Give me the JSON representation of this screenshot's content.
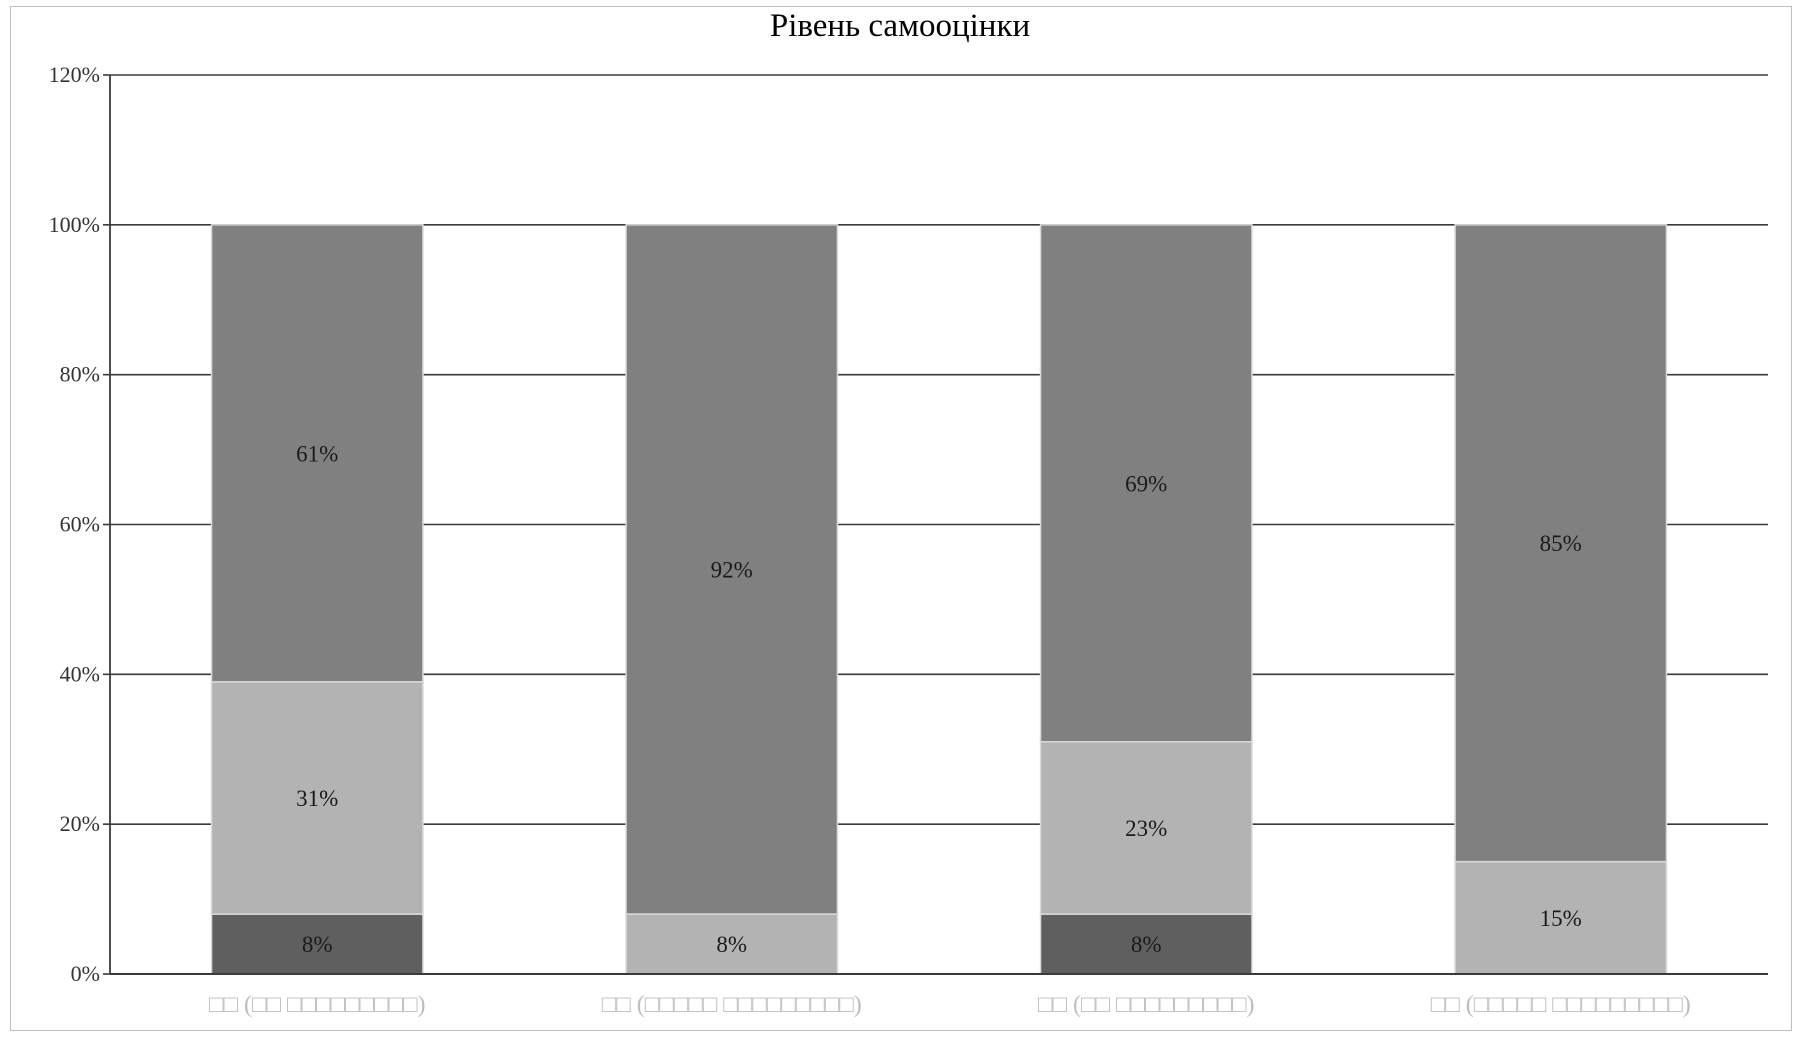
{
  "chart_data": {
    "type": "bar",
    "stacked": true,
    "title": "Рівень самооцінки",
    "xlabel": "",
    "ylabel": "",
    "ylim": [
      0,
      1.2
    ],
    "yticks": [
      "0%",
      "20%",
      "40%",
      "60%",
      "80%",
      "100%",
      "120%"
    ],
    "grid": true,
    "categories": [
      "□□ (□□ □□□□□□□□□)",
      "□□ (□□□□□ □□□□□□□□□)",
      "□□ (□□ □□□□□□□□□)",
      "□□ (□□□□□ □□□□□□□□□)"
    ],
    "series": [
      {
        "values": [
          0.08,
          0,
          0.08,
          0
        ],
        "labels": [
          "8%",
          "",
          "8%",
          ""
        ],
        "color": "#5f5f5f"
      },
      {
        "values": [
          0.31,
          0.08,
          0.23,
          0.15
        ],
        "labels": [
          "31%",
          "8%",
          "23%",
          "15%"
        ],
        "color": "#b3b3b3"
      },
      {
        "values": [
          0.61,
          0.92,
          0.69,
          0.85
        ],
        "labels": [
          "61%",
          "92%",
          "69%",
          "85%"
        ],
        "color": "#808080"
      }
    ]
  }
}
